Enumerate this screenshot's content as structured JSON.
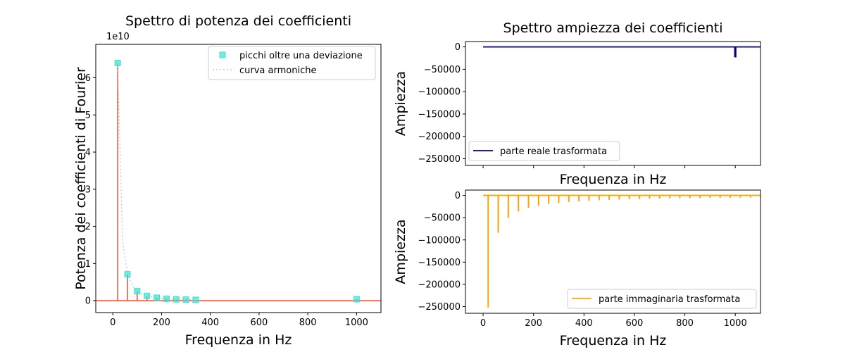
{
  "chart_data": [
    {
      "type": "line",
      "title": "Spettro di potenza dei coefficienti",
      "xlabel": "Frequenza in Hz",
      "ylabel": "Potenza dei coefficienti di Fourier",
      "offset_text": "1e10",
      "xlim": [
        -70,
        1100
      ],
      "ylim": [
        -0.32,
        6.9
      ],
      "xticks": [
        0,
        200,
        400,
        600,
        800,
        1000
      ],
      "yticks": [
        0,
        1,
        2,
        3,
        4,
        5,
        6
      ],
      "legend_position": "upper right",
      "power_stems": {
        "color": "#ff6347",
        "x": [
          20,
          60,
          100,
          140,
          180,
          220,
          260,
          300,
          340,
          380,
          420,
          460,
          500,
          540,
          580,
          620,
          660,
          700,
          740,
          780,
          820,
          860,
          900,
          940,
          980,
          1000
        ],
        "y": [
          6.4,
          0.71,
          0.256,
          0.13,
          0.079,
          0.053,
          0.038,
          0.028,
          0.022,
          0.018,
          0.015,
          0.012,
          0.01,
          0.009,
          0.008,
          0.007,
          0.006,
          0.005,
          0.005,
          0.004,
          0.004,
          0.003,
          0.003,
          0.003,
          0.003,
          0.04
        ]
      },
      "series": [
        {
          "name": "picchi oltre una deviazione",
          "style": "square-markers",
          "color": "#40e0d0",
          "x": [
            20,
            60,
            100,
            140,
            180,
            220,
            260,
            300,
            340,
            1000
          ],
          "y": [
            6.4,
            0.71,
            0.256,
            0.13,
            0.079,
            0.053,
            0.038,
            0.028,
            0.022,
            0.04
          ]
        },
        {
          "name": "curva armoniche",
          "style": "dotted-line",
          "color": "#c8c8c8",
          "x": [
            20,
            40,
            60,
            80,
            100,
            120,
            140,
            160,
            180,
            200,
            220,
            240,
            260,
            280,
            300,
            340
          ],
          "y": [
            6.4,
            1.6,
            0.71,
            0.4,
            0.256,
            0.178,
            0.13,
            0.1,
            0.079,
            0.064,
            0.053,
            0.044,
            0.038,
            0.033,
            0.028,
            0.022
          ]
        }
      ]
    },
    {
      "type": "line",
      "title": "Spettro ampiezza dei coefficienti",
      "xlabel": "Frequenza in Hz",
      "ylabel": "Ampiezza",
      "xlim": [
        -70,
        1100
      ],
      "ylim": [
        -265000,
        12000
      ],
      "xticks": [
        0,
        200,
        400,
        600,
        800,
        1000
      ],
      "yticks": [
        0,
        -50000,
        -100000,
        -150000,
        -200000,
        -250000
      ],
      "yticklabels": [
        "0",
        "−50000",
        "−100000",
        "−150000",
        "−200000",
        "−250000"
      ],
      "show_xticklabels": false,
      "legend_position": "lower left",
      "series": [
        {
          "name": "parte reale trasformata",
          "color": "#000080",
          "x": [
            0,
            998,
            998,
            1000,
            1000,
            1002,
            1002,
            1100
          ],
          "y": [
            0,
            0,
            -22000,
            -22000,
            -22000,
            -22000,
            0,
            0
          ]
        }
      ]
    },
    {
      "type": "bar",
      "title": "",
      "xlabel": "Frequenza in Hz",
      "ylabel": "Ampiezza",
      "xlim": [
        -70,
        1100
      ],
      "ylim": [
        -265000,
        12000
      ],
      "xticks": [
        0,
        200,
        400,
        600,
        800,
        1000
      ],
      "xticklabels": [
        "0",
        "200",
        "400",
        "600",
        "800",
        "1000"
      ],
      "yticks": [
        0,
        -50000,
        -100000,
        -150000,
        -200000,
        -250000
      ],
      "yticklabels": [
        "0",
        "−50000",
        "−100000",
        "−150000",
        "−200000",
        "−250000"
      ],
      "legend_position": "lower right",
      "series": [
        {
          "name": "parte immaginaria trasformata",
          "color": "#ffa500",
          "x": [
            20,
            60,
            100,
            140,
            180,
            220,
            260,
            300,
            340,
            380,
            420,
            460,
            500,
            540,
            580,
            620,
            660,
            700,
            740,
            780,
            820,
            860,
            900,
            940,
            980,
            1020,
            1060
          ],
          "values": [
            -252000,
            -84000,
            -50500,
            -36000,
            -28000,
            -23000,
            -19400,
            -16800,
            -14800,
            -13300,
            -12000,
            -11000,
            -10100,
            -9300,
            -8700,
            -8100,
            -7600,
            -7200,
            -6800,
            -6500,
            -6200,
            -5900,
            -5600,
            -5400,
            -5100,
            -4900,
            -4800
          ]
        }
      ]
    }
  ]
}
